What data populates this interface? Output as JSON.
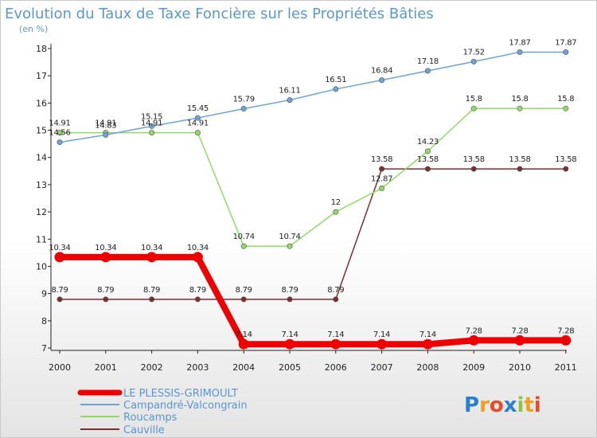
{
  "chart_data": {
    "type": "line",
    "title": "Evolution du Taux de Taxe Foncière sur les Propriétés Bâties",
    "ylabel": "(en %)",
    "xlabel": "",
    "categories": [
      "2000",
      "2001",
      "2002",
      "2003",
      "2004",
      "2005",
      "2006",
      "2007",
      "2008",
      "2009",
      "2010",
      "2011"
    ],
    "ylim": [
      7,
      18
    ],
    "yticks": [
      "7",
      "8",
      "9",
      "10",
      "11",
      "12",
      "13",
      "14",
      "15",
      "16",
      "17",
      "18"
    ],
    "grid": false,
    "series": [
      {
        "name": "LE PLESSIS-GRIMOULT",
        "color": "#ee0000",
        "values": [
          10.34,
          10.34,
          10.34,
          10.34,
          7.14,
          7.14,
          7.14,
          7.14,
          7.14,
          7.28,
          7.28,
          7.28
        ],
        "labels": [
          "10.34",
          "10.34",
          "10.34",
          "10.34",
          "7.14",
          "7.14",
          "7.14",
          "7.14",
          "7.14",
          "7.28",
          "7.28",
          "7.28"
        ]
      },
      {
        "name": "Campandré-Valcongrain",
        "color": "#6ea3d6",
        "values": [
          14.56,
          14.83,
          15.15,
          15.45,
          15.79,
          16.11,
          16.51,
          16.84,
          17.18,
          17.52,
          17.87,
          17.87
        ],
        "labels": [
          "14.56",
          "14.83",
          "15.15",
          "15.45",
          "15.79",
          "16.11",
          "16.51",
          "16.84",
          "17.18",
          "17.52",
          "17.87",
          "17.87"
        ]
      },
      {
        "name": "Roucamps",
        "color": "#93d96a",
        "values": [
          14.91,
          14.91,
          14.91,
          14.91,
          10.74,
          10.74,
          12,
          12.87,
          14.23,
          15.8,
          15.8,
          15.8
        ],
        "labels": [
          "14.91",
          "14.91",
          "14.91",
          "14.91",
          "10.74",
          "10.74",
          "12",
          "12.87",
          "14.23",
          "15.8",
          "15.8",
          "15.8"
        ]
      },
      {
        "name": "Cauville",
        "color": "#7a3030",
        "values": [
          8.79,
          8.79,
          8.79,
          8.79,
          8.79,
          8.79,
          8.79,
          13.58,
          13.58,
          13.58,
          13.58,
          13.58
        ],
        "labels": [
          "8.79",
          "8.79",
          "8.79",
          "8.79",
          "8.79",
          "8.79",
          "8.79",
          "13.58",
          "13.58",
          "13.58",
          "13.58",
          "13.58"
        ]
      }
    ],
    "logo": "Proxiti"
  }
}
